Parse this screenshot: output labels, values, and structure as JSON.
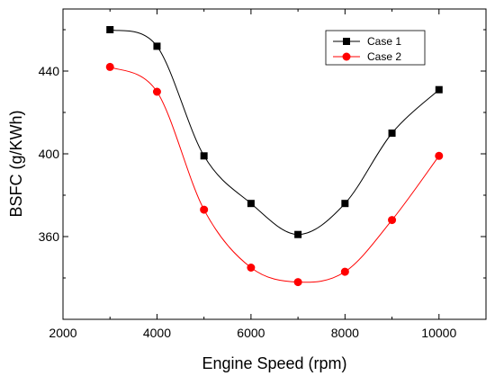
{
  "chart_data": {
    "type": "line",
    "title": "",
    "xlabel": "Engine Speed (rpm)",
    "ylabel": "BSFC (g/KWh)",
    "xlim": [
      2000,
      11000
    ],
    "ylim": [
      320,
      470
    ],
    "x_ticks": [
      2000,
      4000,
      6000,
      8000,
      10000
    ],
    "y_ticks": [
      360,
      400,
      440
    ],
    "x_tick_labels": [
      "2000",
      "4000",
      "6000",
      "8000",
      "10000"
    ],
    "y_tick_labels": [
      "360",
      "400",
      "440"
    ],
    "grid": false,
    "legend_position": "top-right",
    "x": [
      3000,
      4000,
      5000,
      6000,
      7000,
      8000,
      9000,
      10000
    ],
    "series": [
      {
        "name": "Case 1",
        "values": [
          460,
          452,
          399,
          376,
          361,
          376,
          410,
          431
        ],
        "color": "#000000",
        "marker": "square"
      },
      {
        "name": "Case 2",
        "values": [
          442,
          430,
          373,
          345,
          338,
          343,
          368,
          399
        ],
        "color": "#ff0000",
        "marker": "circle"
      }
    ]
  }
}
